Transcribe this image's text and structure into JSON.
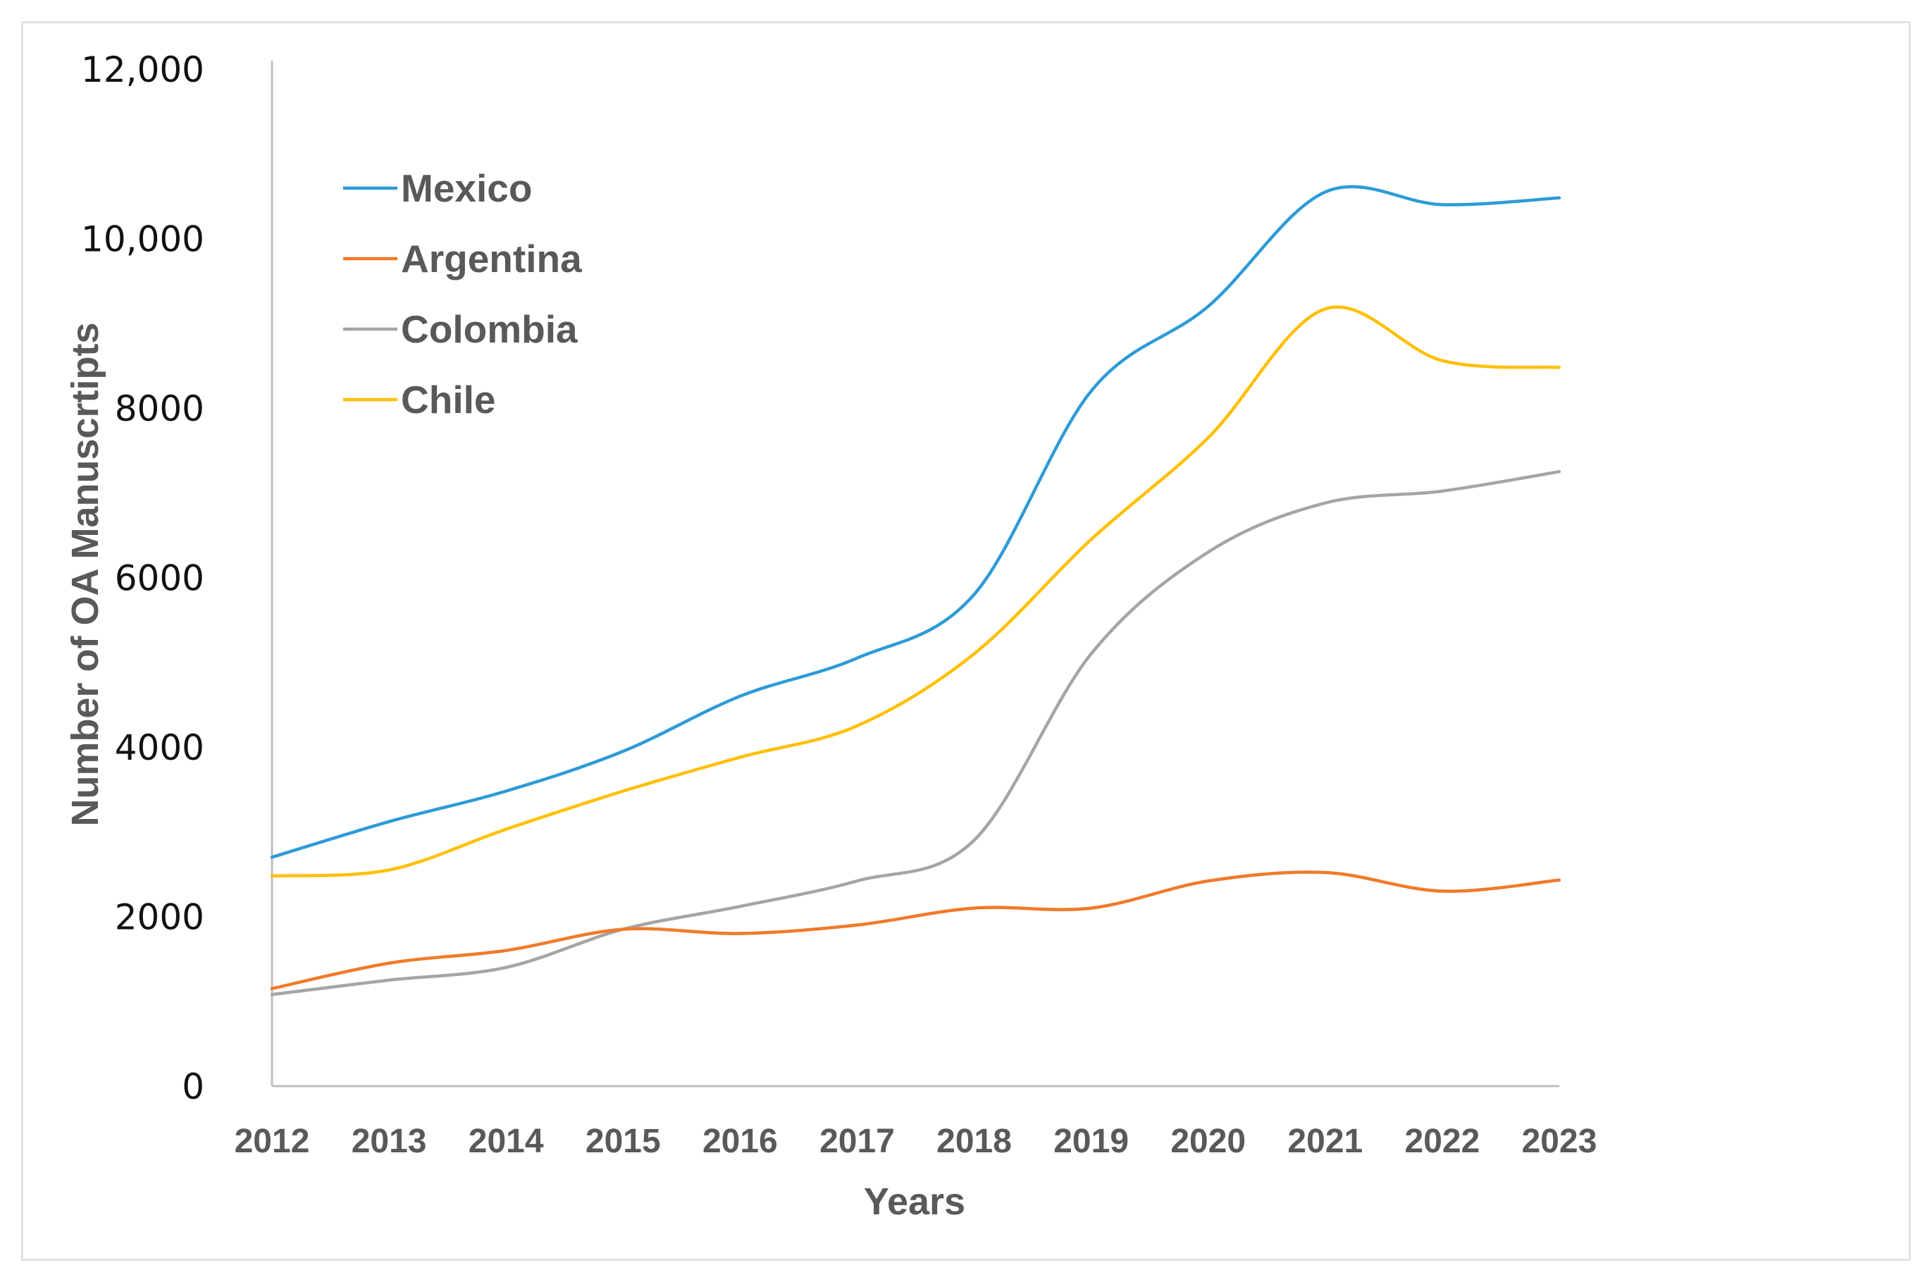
{
  "chart_data": {
    "type": "line",
    "title": "",
    "xlabel": "Years",
    "ylabel": "Number of OA Manuscrtipts",
    "ylim": [
      0,
      12000
    ],
    "yticks": [
      0,
      2000,
      4000,
      6000,
      8000,
      10000,
      12000
    ],
    "ytick_labels": [
      "0",
      "2000",
      "4000",
      "6000",
      "8000",
      "10,000",
      "12,000"
    ],
    "categories": [
      "2012",
      "2013",
      "2014",
      "2015",
      "2016",
      "2017",
      "2018",
      "2019",
      "2020",
      "2021",
      "2022",
      "2023"
    ],
    "grid": false,
    "legend_position": "top-left",
    "series": [
      {
        "name": "Mexico",
        "color": "#2e9bd6",
        "values": [
          2700,
          3120,
          3480,
          3950,
          4600,
          5050,
          5800,
          8200,
          9200,
          10550,
          10400,
          10480
        ]
      },
      {
        "name": "Argentina",
        "color": "#f07a2a",
        "values": [
          1150,
          1450,
          1600,
          1850,
          1800,
          1900,
          2100,
          2100,
          2420,
          2520,
          2300,
          2430
        ]
      },
      {
        "name": "Colombia",
        "color": "#a5a5a5",
        "values": [
          1080,
          1250,
          1400,
          1850,
          2120,
          2420,
          2900,
          5100,
          6300,
          6880,
          7020,
          7250
        ]
      },
      {
        "name": "Chile",
        "color": "#ffc000",
        "values": [
          2480,
          2550,
          3030,
          3480,
          3880,
          4250,
          5100,
          6450,
          7650,
          9170,
          8560,
          8480
        ]
      }
    ]
  }
}
